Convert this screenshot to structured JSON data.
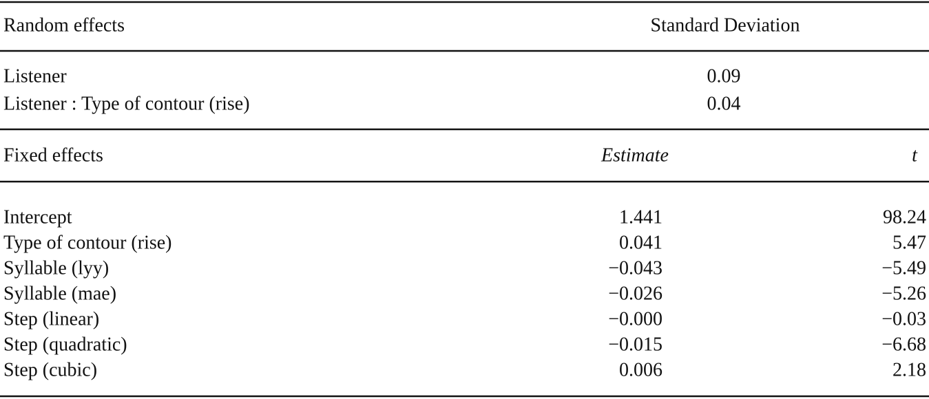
{
  "random_effects": {
    "header": [
      "Random effects",
      "Standard Deviation"
    ],
    "rows": [
      [
        "Listener",
        "0.09"
      ],
      [
        "Listener : Type of contour (rise)",
        "0.04"
      ]
    ]
  },
  "fixed_effects": {
    "header": [
      "Fixed effects",
      "Estimate",
      "t"
    ],
    "rows": [
      [
        "Intercept",
        "1.441",
        "98.24"
      ],
      [
        "Type of contour (rise)",
        "0.041",
        "5.47"
      ],
      [
        "Syllable (lyy)",
        "−0.043",
        "−5.49"
      ],
      [
        "Syllable (mae)",
        "−0.026",
        "−5.26"
      ],
      [
        "Step (linear)",
        "−0.000",
        "−0.03"
      ],
      [
        "Step (quadratic)",
        "−0.015",
        "−6.68"
      ],
      [
        "Step (cubic)",
        "0.006",
        "2.18"
      ]
    ]
  }
}
